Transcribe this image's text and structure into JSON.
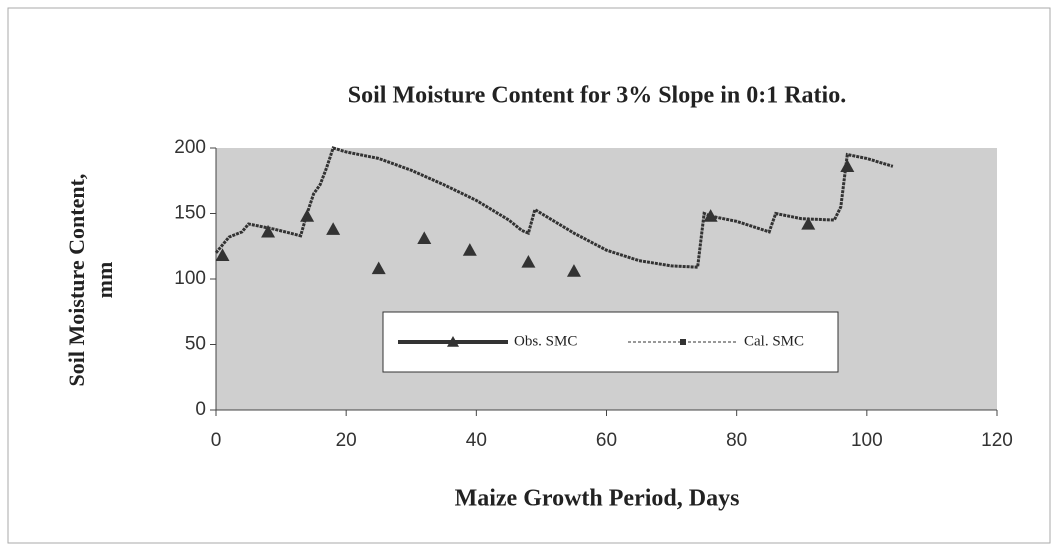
{
  "chart_data": {
    "type": "line",
    "title": "Soil Moisture Content for 3% Slope in 0:1 Ratio.",
    "x_label": "Maize Growth Period, Days",
    "y_label": "Soil Moisture Content, mm",
    "xlim": [
      0,
      120
    ],
    "xticks": [
      0,
      20,
      40,
      60,
      80,
      100,
      120
    ],
    "ylim": [
      0,
      200
    ],
    "yticks": [
      0,
      50,
      100,
      150,
      200
    ],
    "series": [
      {
        "name": "Obs. SMC",
        "color": "#333333",
        "marker": "triangle",
        "x": [
          1,
          8,
          14,
          18,
          25,
          32,
          39,
          48,
          55,
          76,
          91,
          97
        ],
        "values": [
          118,
          136,
          148,
          138,
          108,
          131,
          122,
          113,
          106,
          148,
          142,
          186
        ]
      },
      {
        "name": "Cal. SMC",
        "color": "#333333",
        "marker": "square",
        "x": [
          0,
          2,
          4,
          5,
          9,
          13,
          14,
          15,
          16,
          17,
          18,
          20,
          25,
          30,
          35,
          40,
          45,
          47,
          48,
          49,
          50,
          55,
          60,
          65,
          70,
          74,
          75,
          76,
          80,
          85,
          86,
          90,
          95,
          96,
          97,
          100,
          104
        ],
        "values": [
          120,
          132,
          136,
          142,
          138,
          133,
          150,
          165,
          172,
          185,
          200,
          197,
          192,
          183,
          172,
          160,
          145,
          137,
          135,
          153,
          150,
          135,
          122,
          114,
          110,
          109,
          150,
          148,
          144,
          136,
          150,
          146,
          145,
          155,
          195,
          192,
          186
        ]
      }
    ]
  }
}
